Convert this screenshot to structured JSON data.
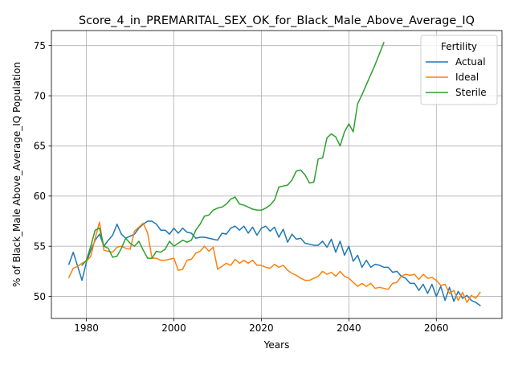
{
  "chart_data": {
    "type": "line",
    "title": "Score_4_in_PREMARITAL_SEX_OK_for_Black_Male_Above_Average_IQ",
    "xlabel": "Years",
    "ylabel": "% of Black_Male Above_Average_IQ Population",
    "xlim": [
      1972,
      2075
    ],
    "ylim": [
      47.8,
      76.5
    ],
    "xticks": [
      1980,
      2000,
      2020,
      2040,
      2060
    ],
    "yticks": [
      50,
      55,
      60,
      65,
      70,
      75
    ],
    "grid": true,
    "legend": {
      "title": "Fertility",
      "position": "top-right"
    },
    "series": [
      {
        "name": "Actual",
        "color": "#1f77b4",
        "x": [
          1976,
          1977,
          1978,
          1979,
          1980,
          1981,
          1982,
          1983,
          1984,
          1985,
          1986,
          1987,
          1988,
          1989,
          1990,
          1991,
          1992,
          1993,
          1994,
          1995,
          1996,
          1997,
          1998,
          1999,
          2000,
          2001,
          2002,
          2003,
          2004,
          2005,
          2006,
          2007,
          2008,
          2009,
          2010,
          2011,
          2012,
          2013,
          2014,
          2015,
          2016,
          2017,
          2018,
          2019,
          2020,
          2021,
          2022,
          2023,
          2024,
          2025,
          2026,
          2027,
          2028,
          2029,
          2030,
          2031,
          2032,
          2033,
          2034,
          2035,
          2036,
          2037,
          2038,
          2039,
          2040,
          2041,
          2042,
          2043,
          2044,
          2045,
          2046,
          2047,
          2048,
          2049,
          2050,
          2051,
          2052,
          2053,
          2054,
          2055,
          2056,
          2057,
          2058,
          2059,
          2060,
          2061,
          2062,
          2063,
          2064,
          2065,
          2066,
          2067,
          2068,
          2069,
          2070
        ],
        "values": [
          53.2,
          54.4,
          53.0,
          51.6,
          53.4,
          54.6,
          55.6,
          56.2,
          55.0,
          55.6,
          56.1,
          57.2,
          56.2,
          55.8,
          56.0,
          56.2,
          56.8,
          57.2,
          57.5,
          57.5,
          57.2,
          56.6,
          56.6,
          56.2,
          56.8,
          56.3,
          56.8,
          56.4,
          56.3,
          55.8,
          55.9,
          55.9,
          55.8,
          55.7,
          55.6,
          56.3,
          56.2,
          56.8,
          57.0,
          56.6,
          57.0,
          56.3,
          56.9,
          56.1,
          56.8,
          57.0,
          56.5,
          56.9,
          55.9,
          56.7,
          55.4,
          56.2,
          55.7,
          55.8,
          55.3,
          55.2,
          55.1,
          55.1,
          55.5,
          54.9,
          55.7,
          54.4,
          55.5,
          54.1,
          55.0,
          53.5,
          54.1,
          52.9,
          53.6,
          52.9,
          53.2,
          53.1,
          52.9,
          52.9,
          52.4,
          52.5,
          52.0,
          51.8,
          51.3,
          51.3,
          50.6,
          51.2,
          50.3,
          51.2,
          50.0,
          51.0,
          49.6,
          50.9,
          49.5,
          50.5,
          49.8,
          50.1,
          49.6,
          49.4,
          49.1
        ]
      },
      {
        "name": "Ideal",
        "color": "#ff7f0e",
        "x": [
          1976,
          1977,
          1978,
          1979,
          1980,
          1981,
          1982,
          1983,
          1984,
          1985,
          1986,
          1987,
          1988,
          1989,
          1990,
          1991,
          1992,
          1993,
          1994,
          1995,
          1996,
          1997,
          1998,
          1999,
          2000,
          2001,
          2002,
          2003,
          2004,
          2005,
          2006,
          2007,
          2008,
          2009,
          2010,
          2011,
          2012,
          2013,
          2014,
          2015,
          2016,
          2017,
          2018,
          2019,
          2020,
          2021,
          2022,
          2023,
          2024,
          2025,
          2026,
          2027,
          2028,
          2029,
          2030,
          2031,
          2032,
          2033,
          2034,
          2035,
          2036,
          2037,
          2038,
          2039,
          2040,
          2041,
          2042,
          2043,
          2044,
          2045,
          2046,
          2047,
          2048,
          2049,
          2050,
          2051,
          2052,
          2053,
          2054,
          2055,
          2056,
          2057,
          2058,
          2059,
          2060,
          2061,
          2062,
          2063,
          2064,
          2065,
          2066,
          2067,
          2068,
          2069,
          2070
        ],
        "values": [
          51.9,
          52.8,
          53.0,
          53.3,
          53.5,
          54.0,
          55.8,
          57.4,
          54.6,
          54.5,
          54.4,
          54.9,
          55.0,
          54.8,
          54.7,
          56.5,
          56.9,
          57.3,
          56.3,
          53.8,
          53.8,
          53.6,
          53.6,
          53.7,
          53.8,
          52.6,
          52.7,
          53.6,
          53.7,
          54.3,
          54.5,
          55.0,
          54.5,
          54.9,
          52.7,
          53.0,
          53.3,
          53.1,
          53.7,
          53.3,
          53.6,
          53.3,
          53.6,
          53.1,
          53.1,
          52.9,
          52.8,
          53.2,
          52.9,
          53.1,
          52.6,
          52.3,
          52.1,
          51.8,
          51.6,
          51.6,
          51.8,
          52.0,
          52.5,
          52.2,
          52.4,
          52.0,
          52.5,
          52.0,
          51.8,
          51.4,
          51.0,
          51.3,
          51.0,
          51.3,
          50.8,
          50.9,
          50.8,
          50.7,
          51.3,
          51.4,
          52.0,
          52.2,
          52.1,
          52.2,
          51.7,
          52.2,
          51.8,
          51.9,
          51.6,
          51.1,
          51.2,
          50.3,
          50.6,
          49.6,
          50.4,
          49.4,
          50.1,
          49.8,
          50.4
        ]
      },
      {
        "name": "Sterile",
        "color": "#2ca02c",
        "x": [
          1979,
          1980,
          1981,
          1982,
          1983,
          1984,
          1985,
          1986,
          1987,
          1988,
          1989,
          1990,
          1991,
          1992,
          1993,
          1994,
          1995,
          1996,
          1997,
          1998,
          1999,
          2000,
          2001,
          2002,
          2003,
          2004,
          2005,
          2006,
          2007,
          2008,
          2009,
          2010,
          2011,
          2012,
          2013,
          2014,
          2015,
          2016,
          2017,
          2018,
          2019,
          2020,
          2021,
          2022,
          2023,
          2024,
          2025,
          2026,
          2027,
          2028,
          2029,
          2030,
          2031,
          2032,
          2033,
          2034,
          2035,
          2036,
          2037,
          2038,
          2039,
          2040,
          2041,
          2042,
          2043,
          2044,
          2045,
          2046,
          2047,
          2048
        ],
        "values": [
          53.1,
          53.6,
          55.0,
          56.6,
          56.8,
          55.0,
          54.8,
          53.9,
          54.0,
          54.8,
          55.8,
          55.3,
          55.0,
          55.5,
          54.6,
          53.8,
          53.8,
          54.5,
          54.4,
          54.7,
          55.5,
          55.0,
          55.3,
          55.6,
          55.4,
          55.6,
          56.6,
          57.2,
          58.0,
          58.1,
          58.6,
          58.8,
          58.9,
          59.2,
          59.7,
          59.9,
          59.2,
          59.1,
          58.9,
          58.7,
          58.6,
          58.6,
          58.8,
          59.1,
          59.6,
          60.9,
          61.0,
          61.1,
          61.6,
          62.5,
          62.6,
          62.1,
          61.3,
          61.4,
          63.7,
          63.8,
          65.8,
          66.2,
          65.9,
          65.0,
          66.4,
          67.2,
          66.4,
          69.2,
          70.1,
          71.1,
          72.1,
          73.1,
          74.2,
          75.3
        ]
      }
    ]
  }
}
